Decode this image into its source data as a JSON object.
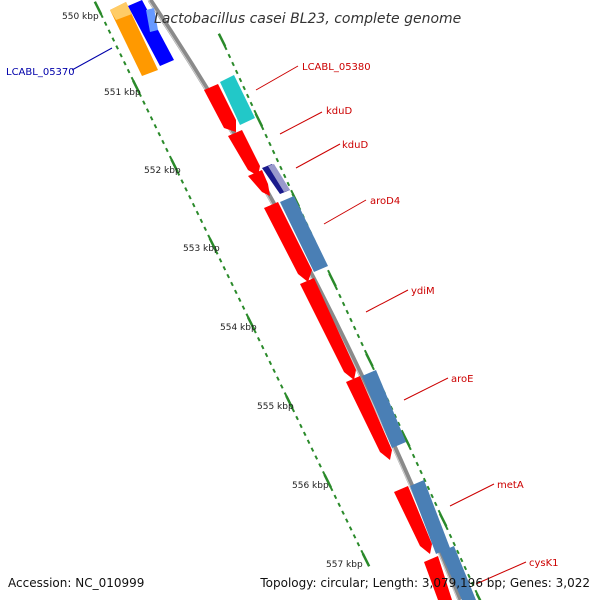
{
  "map": {
    "title": "Lactobacillus casei BL23, complete genome",
    "accession": "Accession: NC_010999",
    "topology": "Topology: circular; Length: 3,079,196 bp; Genes: 3,022"
  },
  "ticks": [
    "550 kbp",
    "551 kbp",
    "552 kbp",
    "553 kbp",
    "554 kbp",
    "555 kbp",
    "556 kbp",
    "557 kbp"
  ],
  "gene_labels": [
    "LCABL_05370",
    "LCABL_05380",
    "kduD",
    "kduD",
    "aroD4",
    "ydiM",
    "aroE",
    "metA",
    "cysK1"
  ],
  "colors": {
    "backbone": "#8a8a8a",
    "cds": "#ff0000",
    "gene_steelblue": "#4a7fb5",
    "gene_orange": "#ff9900",
    "gene_blue": "#0000ff",
    "gene_cyan": "#22c8c8",
    "gene_navy": "#1a1a8c",
    "label_red": "#cc0000",
    "label_blue": "#0000aa",
    "tick_green": "#2a8a2a"
  }
}
